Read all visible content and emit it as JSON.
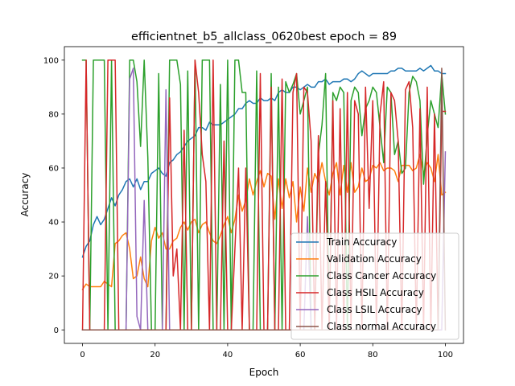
{
  "chart_data": {
    "type": "line",
    "title": "efficientnet_b5_allclass_0620best epoch = 89",
    "xlabel": "Epoch",
    "ylabel": "Accuracy",
    "xlim": [
      -5,
      105
    ],
    "ylim": [
      -5,
      105
    ],
    "xticks": [
      0,
      20,
      40,
      60,
      80,
      100
    ],
    "yticks": [
      0,
      20,
      40,
      60,
      80,
      100
    ],
    "grid": false,
    "legend_position": "lower-right",
    "series": [
      {
        "name": "Train Accuracy",
        "color": "#1f77b4",
        "values": [
          27,
          31,
          33,
          39,
          42,
          39,
          41,
          45,
          49,
          46,
          50,
          52,
          55,
          56,
          53,
          56,
          52,
          55,
          55,
          58,
          59,
          60,
          58,
          57,
          62,
          63,
          65,
          66,
          68,
          70,
          71,
          72,
          75,
          75,
          74,
          77,
          76,
          76,
          76,
          77,
          78,
          79,
          80,
          82,
          82,
          84,
          85,
          84,
          84,
          86,
          85,
          85,
          86,
          85,
          88,
          89,
          88,
          88,
          90,
          90,
          89,
          90,
          91,
          90,
          90,
          92,
          92,
          93,
          91,
          92,
          92,
          92,
          93,
          93,
          92,
          93,
          95,
          96,
          95,
          94,
          95,
          95,
          95,
          95,
          95,
          96,
          96,
          97,
          97,
          96,
          96,
          96,
          96,
          97,
          96,
          97,
          98,
          96,
          96,
          95,
          95
        ]
      },
      {
        "name": "Validation Accuracy",
        "color": "#ff7f0e",
        "values": [
          15,
          17,
          16,
          16,
          16,
          16,
          18,
          17,
          16,
          32,
          33,
          35,
          36,
          30,
          19,
          20,
          27,
          19,
          16,
          33,
          38,
          34,
          36,
          30,
          30,
          33,
          34,
          38,
          40,
          37,
          40,
          41,
          36,
          39,
          40,
          36,
          33,
          32,
          35,
          39,
          42,
          36,
          41,
          50,
          44,
          48,
          56,
          50,
          55,
          59,
          53,
          58,
          57,
          41,
          56,
          45,
          56,
          49,
          55,
          40,
          53,
          44,
          60,
          51,
          58,
          55,
          62,
          55,
          50,
          58,
          62,
          50,
          61,
          51,
          62,
          51,
          53,
          60,
          55,
          56,
          61,
          60,
          62,
          59,
          60,
          60,
          59,
          55,
          61,
          61,
          61,
          59,
          60,
          65,
          58,
          62,
          60,
          55,
          65,
          50,
          51
        ]
      },
      {
        "name": "Class Cancer Accuracy",
        "color": "#2ca02c",
        "values": [
          100,
          100,
          0,
          100,
          100,
          100,
          100,
          0,
          100,
          0,
          0,
          0,
          0,
          100,
          100,
          92,
          68,
          100,
          64,
          0,
          0,
          95,
          0,
          0,
          100,
          100,
          100,
          91,
          0,
          96,
          0,
          100,
          0,
          100,
          100,
          100,
          0,
          0,
          91,
          0,
          100,
          0,
          100,
          100,
          88,
          88,
          0,
          0,
          96,
          0,
          0,
          0,
          95,
          0,
          90,
          0,
          92,
          88,
          91,
          95,
          80,
          85,
          90,
          0,
          0,
          65,
          76,
          95,
          0,
          88,
          85,
          90,
          88,
          0,
          85,
          90,
          88,
          72,
          82,
          85,
          90,
          88,
          75,
          62,
          90,
          88,
          65,
          70,
          58,
          60,
          88,
          94,
          92,
          85,
          54,
          72,
          85,
          80,
          75,
          95,
          80
        ]
      },
      {
        "name": "Class HSIL Accuracy",
        "color": "#d62728",
        "values": [
          0,
          100,
          0,
          0,
          0,
          0,
          0,
          100,
          100,
          100,
          0,
          0,
          0,
          0,
          0,
          0,
          0,
          0,
          0,
          0,
          0,
          0,
          0,
          0,
          86,
          20,
          30,
          0,
          74,
          0,
          0,
          100,
          88,
          65,
          55,
          0,
          100,
          0,
          0,
          70,
          0,
          0,
          30,
          60,
          0,
          60,
          0,
          0,
          0,
          95,
          0,
          0,
          90,
          0,
          0,
          93,
          0,
          0,
          88,
          95,
          0,
          90,
          88,
          70,
          0,
          72,
          0,
          55,
          0,
          85,
          0,
          82,
          0,
          88,
          0,
          85,
          80,
          0,
          90,
          45,
          85,
          0,
          80,
          92,
          0,
          88,
          85,
          70,
          0,
          89,
          92,
          75,
          0,
          82,
          0,
          90,
          0,
          80,
          0,
          81,
          81
        ]
      },
      {
        "name": "Class LSIL Accuracy",
        "color": "#9467bd",
        "values": [
          0,
          0,
          0,
          0,
          0,
          0,
          0,
          0,
          0,
          0,
          0,
          0,
          0,
          93,
          97,
          5,
          0,
          48,
          0,
          0,
          0,
          0,
          0,
          89,
          0,
          0,
          0,
          0,
          0,
          0,
          0,
          0,
          0,
          0,
          0,
          0,
          0,
          0,
          0,
          0,
          0,
          0,
          0,
          0,
          0,
          0,
          0,
          0,
          0,
          0,
          0,
          0,
          0,
          0,
          0,
          0,
          0,
          0,
          0,
          0,
          0,
          0,
          42,
          0,
          0,
          0,
          0,
          0,
          0,
          0,
          0,
          0,
          0,
          0,
          0,
          0,
          0,
          0,
          0,
          0,
          0,
          0,
          0,
          0,
          0,
          0,
          0,
          0,
          0,
          0,
          0,
          0,
          0,
          0,
          0,
          0,
          0,
          0,
          0,
          0,
          66
        ]
      },
      {
        "name": "Class normal Accuracy",
        "color": "#8c564b",
        "values": [
          0,
          0,
          0,
          0,
          0,
          0,
          0,
          0,
          0,
          0,
          0,
          0,
          0,
          0,
          0,
          0,
          0,
          0,
          0,
          0,
          0,
          0,
          0,
          0,
          0,
          0,
          0,
          0,
          0,
          0,
          0,
          0,
          0,
          0,
          0,
          0,
          0,
          0,
          0,
          0,
          0,
          0,
          0,
          0,
          0,
          0,
          0,
          0,
          0,
          0,
          0,
          0,
          0,
          0,
          0,
          0,
          0,
          0,
          0,
          0,
          0,
          0,
          0,
          0,
          0,
          0,
          0,
          0,
          0,
          0,
          0,
          0,
          0,
          0,
          0,
          0,
          0,
          0,
          0,
          0,
          0,
          0,
          0,
          0,
          0,
          0,
          0,
          0,
          0,
          0,
          0,
          0,
          0,
          0,
          0,
          0,
          0,
          0,
          0,
          97,
          0
        ]
      }
    ]
  }
}
